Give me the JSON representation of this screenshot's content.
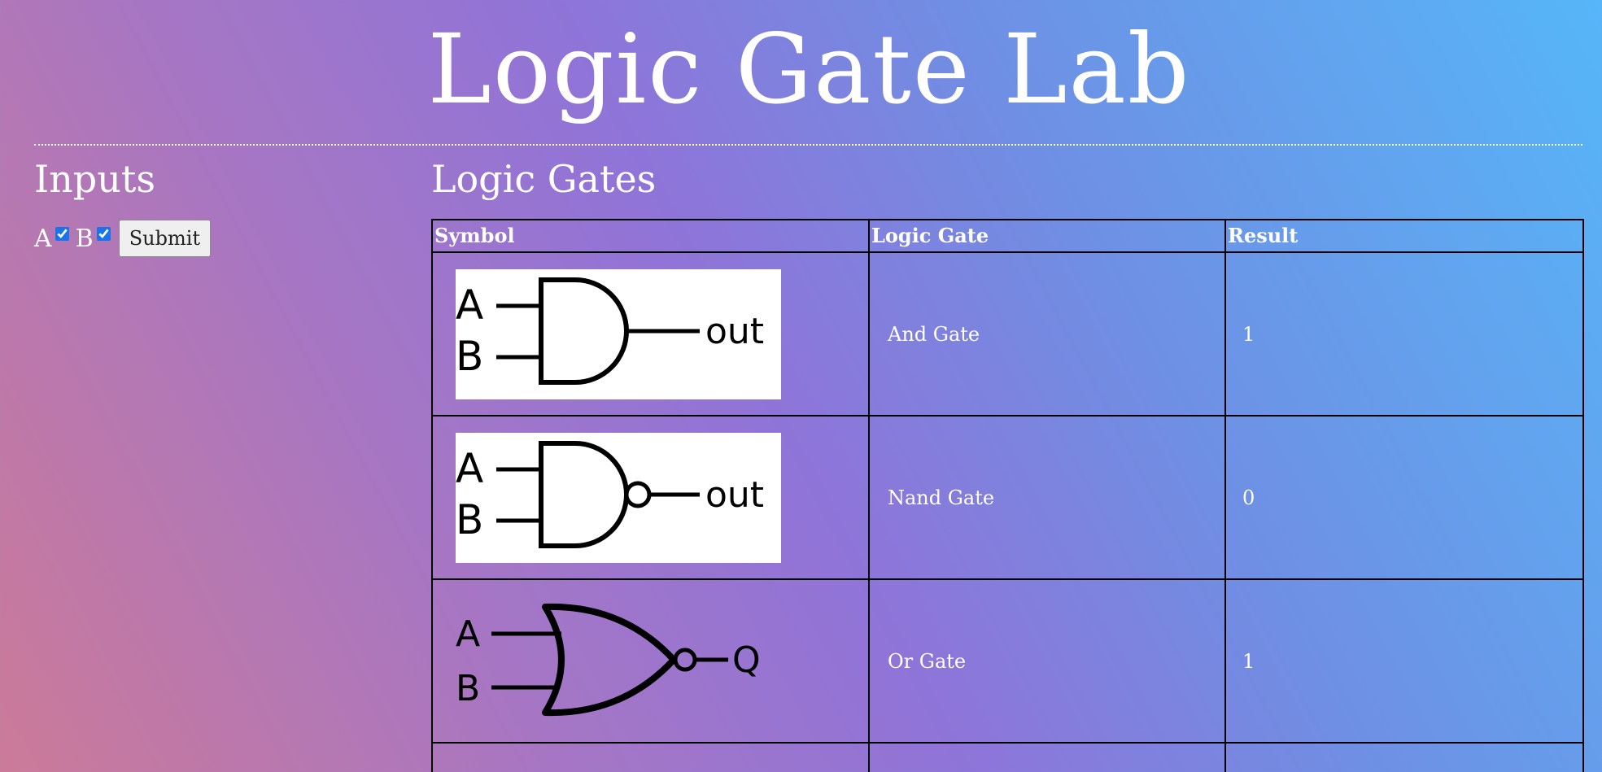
{
  "page": {
    "title": "Logic Gate Lab"
  },
  "inputs": {
    "heading": "Inputs",
    "a_label": "A",
    "a_checked": true,
    "b_label": "B",
    "b_checked": true,
    "submit_label": "Submit"
  },
  "gates": {
    "heading": "Logic Gates",
    "columns": [
      "Symbol",
      "Logic Gate",
      "Result"
    ],
    "rows": [
      {
        "symbol": "and-gate-symbol",
        "input_a": "A",
        "input_b": "B",
        "output": "out",
        "name": "And Gate",
        "result": "1"
      },
      {
        "symbol": "nand-gate-symbol",
        "input_a": "A",
        "input_b": "B",
        "output": "out",
        "name": "Nand Gate",
        "result": "0"
      },
      {
        "symbol": "nor-gate-symbol",
        "input_a": "A",
        "input_b": "B",
        "output": "Q",
        "name": "Or Gate",
        "result": "1"
      }
    ]
  },
  "colors": {
    "text": "#ffffff",
    "border": "#000000",
    "checkbox": "#1a73e8",
    "gradient_start": "#cc7a98",
    "gradient_mid": "#8f74d8",
    "gradient_end": "#56b6f8"
  }
}
